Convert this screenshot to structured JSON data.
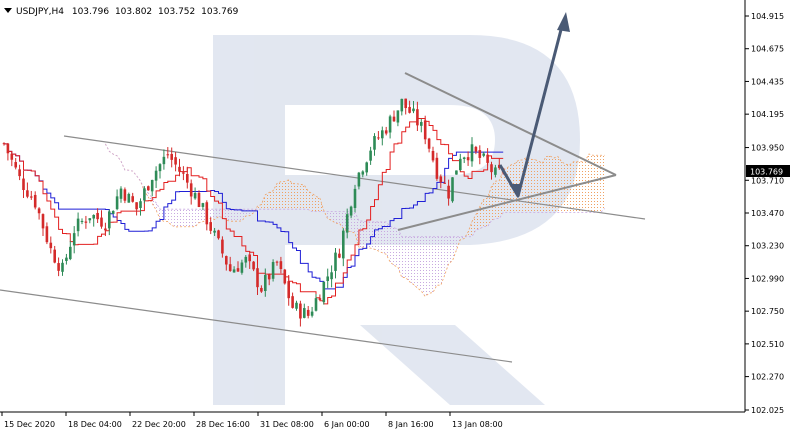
{
  "header": {
    "symbol": "USDJPY,H4",
    "open": "103.796",
    "high": "103.802",
    "low": "103.752",
    "close": "103.769"
  },
  "chart_data": {
    "type": "candlestick",
    "title": "USDJPY,H4",
    "ylim": [
      102.025,
      105.0
    ],
    "y_ticks": [
      "104.915",
      "104.675",
      "104.435",
      "104.195",
      "103.950",
      "103.710",
      "103.470",
      "103.230",
      "102.990",
      "102.750",
      "102.510",
      "102.270",
      "102.025"
    ],
    "x_ticks": [
      "15 Dec 2020",
      "18 Dec 04:00",
      "22 Dec 20:00",
      "28 Dec 16:00",
      "31 Dec 08:00",
      "6 Jan 00:00",
      "8 Jan 16:00",
      "13 Jan 08:00"
    ],
    "current_price": "103.769",
    "colors": {
      "bull": "#2e8b57",
      "bear": "#d42a2a",
      "tenkan": "#e32020",
      "kijun": "#1f1fd6",
      "kumo_bull": "#f0a060",
      "kumo_bear": "#c8a8e0",
      "trendline": "#8c8c8c",
      "arrow": "#4a5a75",
      "watermark": "#dde3ee"
    }
  }
}
